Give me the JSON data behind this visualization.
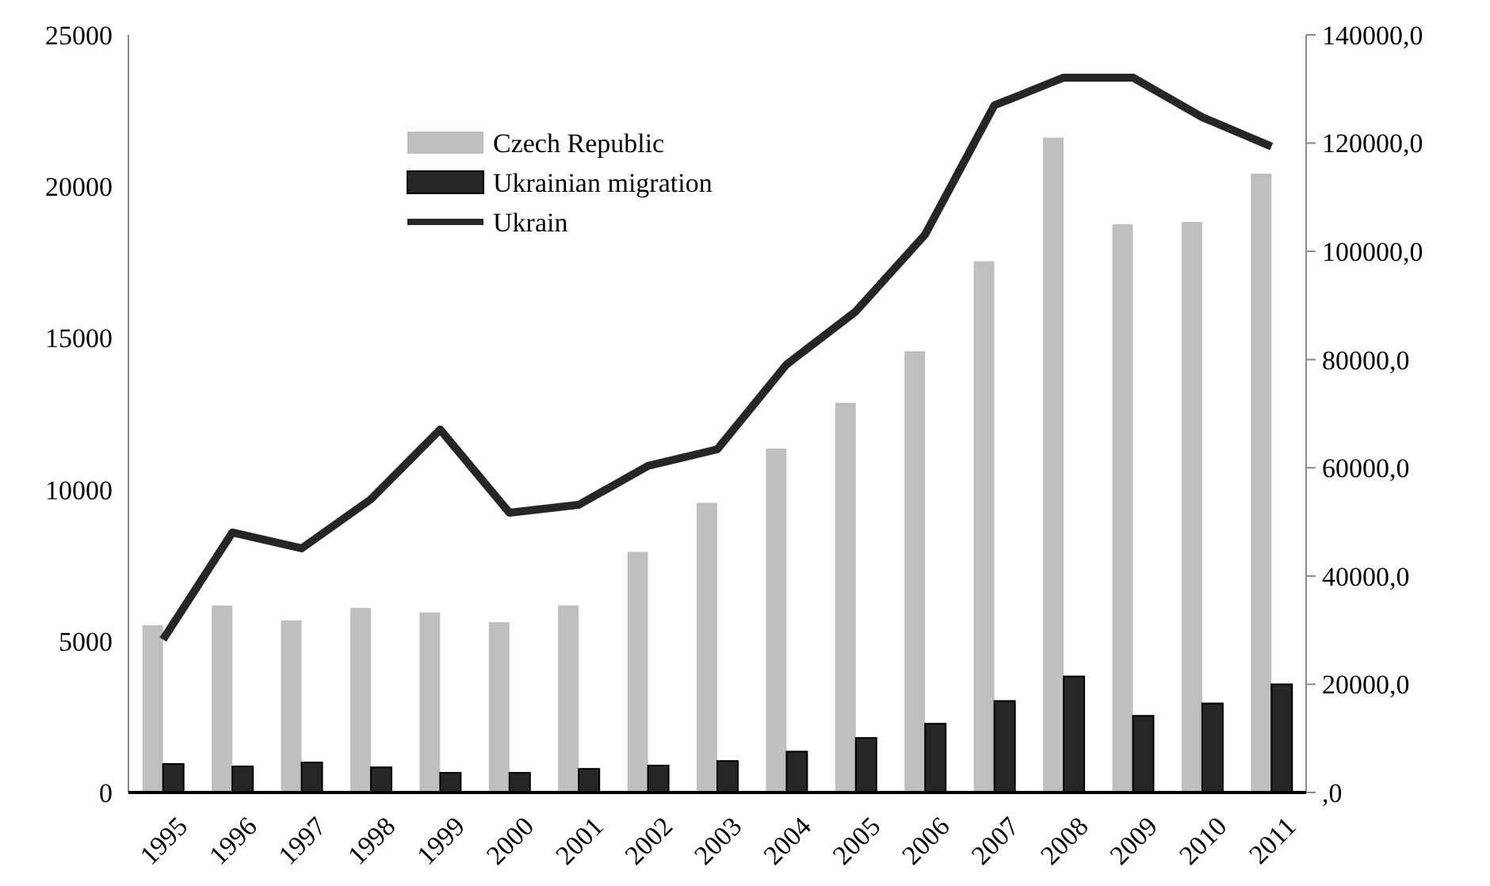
{
  "chart_data": {
    "type": "bar",
    "categories": [
      "1995",
      "1996",
      "1997",
      "1998",
      "1999",
      "2000",
      "2001",
      "2002",
      "2003",
      "2004",
      "2005",
      "2006",
      "2007",
      "2008",
      "2009",
      "2010",
      "2011"
    ],
    "series": [
      {
        "name": "Czech Republic",
        "color": "#bfbfbf",
        "values": [
          5520,
          6170,
          5680,
          6090,
          5940,
          5620,
          6170,
          7940,
          9560,
          11350,
          12860,
          14560,
          17530,
          21610,
          18750,
          18830,
          20420
        ]
      },
      {
        "name": "Ukrainian migration",
        "color": "#262626",
        "values": [
          940,
          860,
          990,
          830,
          650,
          650,
          780,
          890,
          1040,
          1350,
          1800,
          2270,
          3020,
          3830,
          2530,
          2940,
          3570
        ]
      },
      {
        "name": "Ukrain",
        "type": "line",
        "axis": "y2",
        "color": "#262626",
        "values": [
          28270,
          48040,
          45110,
          54190,
          67080,
          51700,
          53160,
          60340,
          63410,
          79090,
          88900,
          103100,
          126980,
          132100,
          132100,
          124780,
          119360
        ]
      }
    ],
    "ylim": [
      0,
      25000
    ],
    "yticks": [
      0,
      5000,
      10000,
      15000,
      20000,
      25000
    ],
    "y2lim": [
      0,
      140000
    ],
    "y2ticks": [
      {
        "value": 0,
        "label": ",0"
      },
      {
        "value": 20000,
        "label": "20000,0"
      },
      {
        "value": 40000,
        "label": "40000,0"
      },
      {
        "value": 60000,
        "label": "60000,0"
      },
      {
        "value": 80000,
        "label": "80000,0"
      },
      {
        "value": 100000,
        "label": "100000,0"
      },
      {
        "value": 120000,
        "label": "120000,0"
      },
      {
        "value": 140000,
        "label": "140000,0"
      }
    ],
    "legend": "top left",
    "grid": false,
    "marker": "none",
    "line_style": "solid"
  }
}
